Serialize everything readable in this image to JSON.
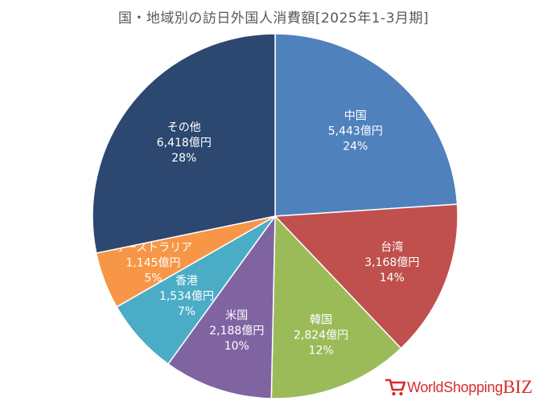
{
  "chart_data": {
    "type": "pie",
    "title": "国・地域別の訪日外国人消費額[2025年1-3月期]",
    "slices": [
      {
        "name": "中国",
        "amount": "5,443億円",
        "percent": "24%",
        "value": 5443,
        "color": "#4f81bd"
      },
      {
        "name": "台湾",
        "amount": "3,168億円",
        "percent": "14%",
        "value": 3168,
        "color": "#c0504d"
      },
      {
        "name": "韓国",
        "amount": "2,824億円",
        "percent": "12%",
        "value": 2824,
        "color": "#9bbb59"
      },
      {
        "name": "米国",
        "amount": "2,188億円",
        "percent": "10%",
        "value": 2188,
        "color": "#8064a2"
      },
      {
        "name": "香港",
        "amount": "1,534億円",
        "percent": "7%",
        "value": 1534,
        "color": "#4bacc6"
      },
      {
        "name": "オーストラリア",
        "amount": "1,145億円",
        "percent": "5%",
        "value": 1145,
        "color": "#f79646"
      },
      {
        "name": "その他",
        "amount": "6,418億円",
        "percent": "28%",
        "value": 6418,
        "color": "#2c4770"
      }
    ]
  },
  "logo": {
    "main": "WorldShopping",
    "suffix": "BIZ",
    "name": "worldshopping-biz-logo"
  }
}
